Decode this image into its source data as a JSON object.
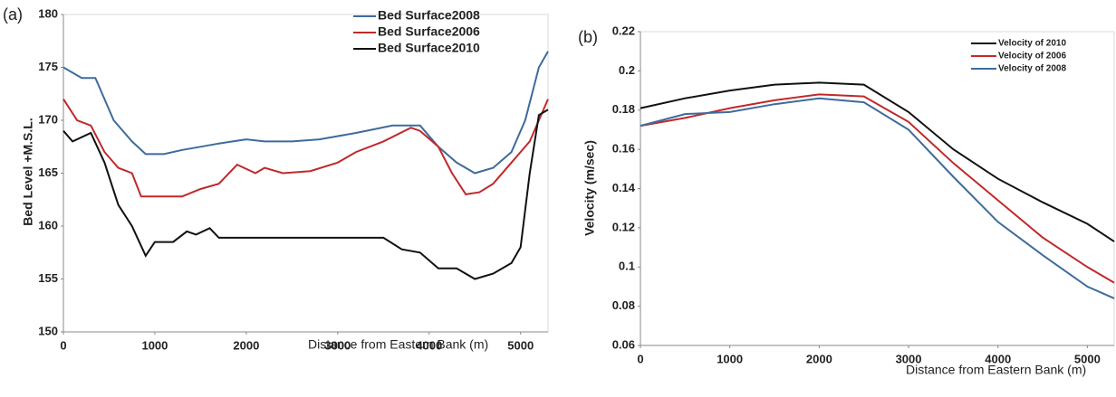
{
  "chart_data": [
    {
      "type": "line",
      "panel_label": "(a)",
      "y_label": "Bed Level +M.S.L.",
      "x_label": "Distance from Eastern Bank (m)",
      "xlim": [
        0,
        5300
      ],
      "xticks": [
        0,
        1000,
        2000,
        3000,
        4000,
        5000
      ],
      "ylim": [
        150,
        180
      ],
      "yticks": [
        150,
        155,
        160,
        165,
        170,
        175,
        180
      ],
      "grid": false,
      "legend": "top-right",
      "series": [
        {
          "name": "Bed Surface2008",
          "color": "#3e6b9c",
          "x": [
            0,
            200,
            350,
            550,
            750,
            900,
            1100,
            1300,
            1500,
            1700,
            2000,
            2200,
            2500,
            2800,
            3200,
            3600,
            3900,
            4100,
            4300,
            4500,
            4700,
            4900,
            5050,
            5200,
            5300
          ],
          "values": [
            175,
            174,
            174,
            170,
            168,
            166.8,
            166.8,
            167.2,
            167.5,
            167.8,
            168.2,
            168,
            168,
            168.2,
            168.8,
            169.5,
            169.5,
            167.5,
            166,
            165,
            165.5,
            167,
            170,
            175,
            176.5
          ]
        },
        {
          "name": "Bed Surface2006",
          "color": "#c0292b",
          "x": [
            0,
            150,
            300,
            450,
            600,
            750,
            850,
            1100,
            1300,
            1500,
            1700,
            1900,
            2100,
            2200,
            2400,
            2700,
            3000,
            3200,
            3500,
            3800,
            3900,
            4100,
            4250,
            4400,
            4550,
            4700,
            4900,
            5100,
            5300
          ],
          "values": [
            172,
            170,
            169.5,
            167,
            165.5,
            165,
            162.8,
            162.8,
            162.8,
            163.5,
            164,
            165.8,
            165,
            165.5,
            165,
            165.2,
            166,
            167,
            168,
            169.3,
            169,
            167.5,
            165,
            163,
            163.2,
            164,
            166,
            168,
            172
          ]
        },
        {
          "name": "Bed Surface2010",
          "color": "#111111",
          "x": [
            0,
            100,
            300,
            450,
            600,
            750,
            900,
            1000,
            1200,
            1350,
            1450,
            1600,
            1700,
            2500,
            3500,
            3700,
            3900,
            4100,
            4300,
            4500,
            4700,
            4900,
            5000,
            5100,
            5200,
            5300
          ],
          "values": [
            169,
            168,
            168.8,
            166,
            162,
            160,
            157.2,
            158.5,
            158.5,
            159.5,
            159.2,
            159.8,
            158.9,
            158.9,
            158.9,
            157.8,
            157.5,
            156,
            156,
            155,
            155.5,
            156.5,
            158,
            165,
            170.5,
            171
          ]
        }
      ]
    },
    {
      "type": "line",
      "panel_label": "(b)",
      "y_label": "Velocity (m/sec)",
      "x_label": "Distance from Eastern Bank (m)",
      "xlim": [
        0,
        5300
      ],
      "xticks": [
        0,
        1000,
        2000,
        3000,
        4000,
        5000
      ],
      "ylim": [
        0.06,
        0.22
      ],
      "yticks": [
        0.06,
        0.08,
        0.1,
        0.12,
        0.14,
        0.16,
        0.18,
        0.2,
        0.22
      ],
      "grid": false,
      "legend": "top-right",
      "series": [
        {
          "name": "Velocity of 2010",
          "color": "#111111",
          "x": [
            0,
            500,
            1000,
            1500,
            2000,
            2500,
            3000,
            3500,
            4000,
            4500,
            5000,
            5300
          ],
          "values": [
            0.181,
            0.186,
            0.19,
            0.193,
            0.194,
            0.193,
            0.179,
            0.16,
            0.145,
            0.133,
            0.122,
            0.113
          ]
        },
        {
          "name": "Velocity of 2006",
          "color": "#c0292b",
          "x": [
            0,
            500,
            1000,
            1500,
            2000,
            2500,
            3000,
            3500,
            4000,
            4500,
            5000,
            5300
          ],
          "values": [
            0.172,
            0.176,
            0.181,
            0.185,
            0.188,
            0.187,
            0.174,
            0.153,
            0.134,
            0.115,
            0.1,
            0.092
          ]
        },
        {
          "name": "Velocity of 2008",
          "color": "#3e6b9c",
          "x": [
            0,
            500,
            1000,
            1500,
            2000,
            2500,
            3000,
            3500,
            4000,
            4500,
            5000,
            5300
          ],
          "values": [
            0.172,
            0.178,
            0.179,
            0.183,
            0.186,
            0.184,
            0.17,
            0.146,
            0.123,
            0.106,
            0.09,
            0.084
          ]
        }
      ]
    }
  ]
}
